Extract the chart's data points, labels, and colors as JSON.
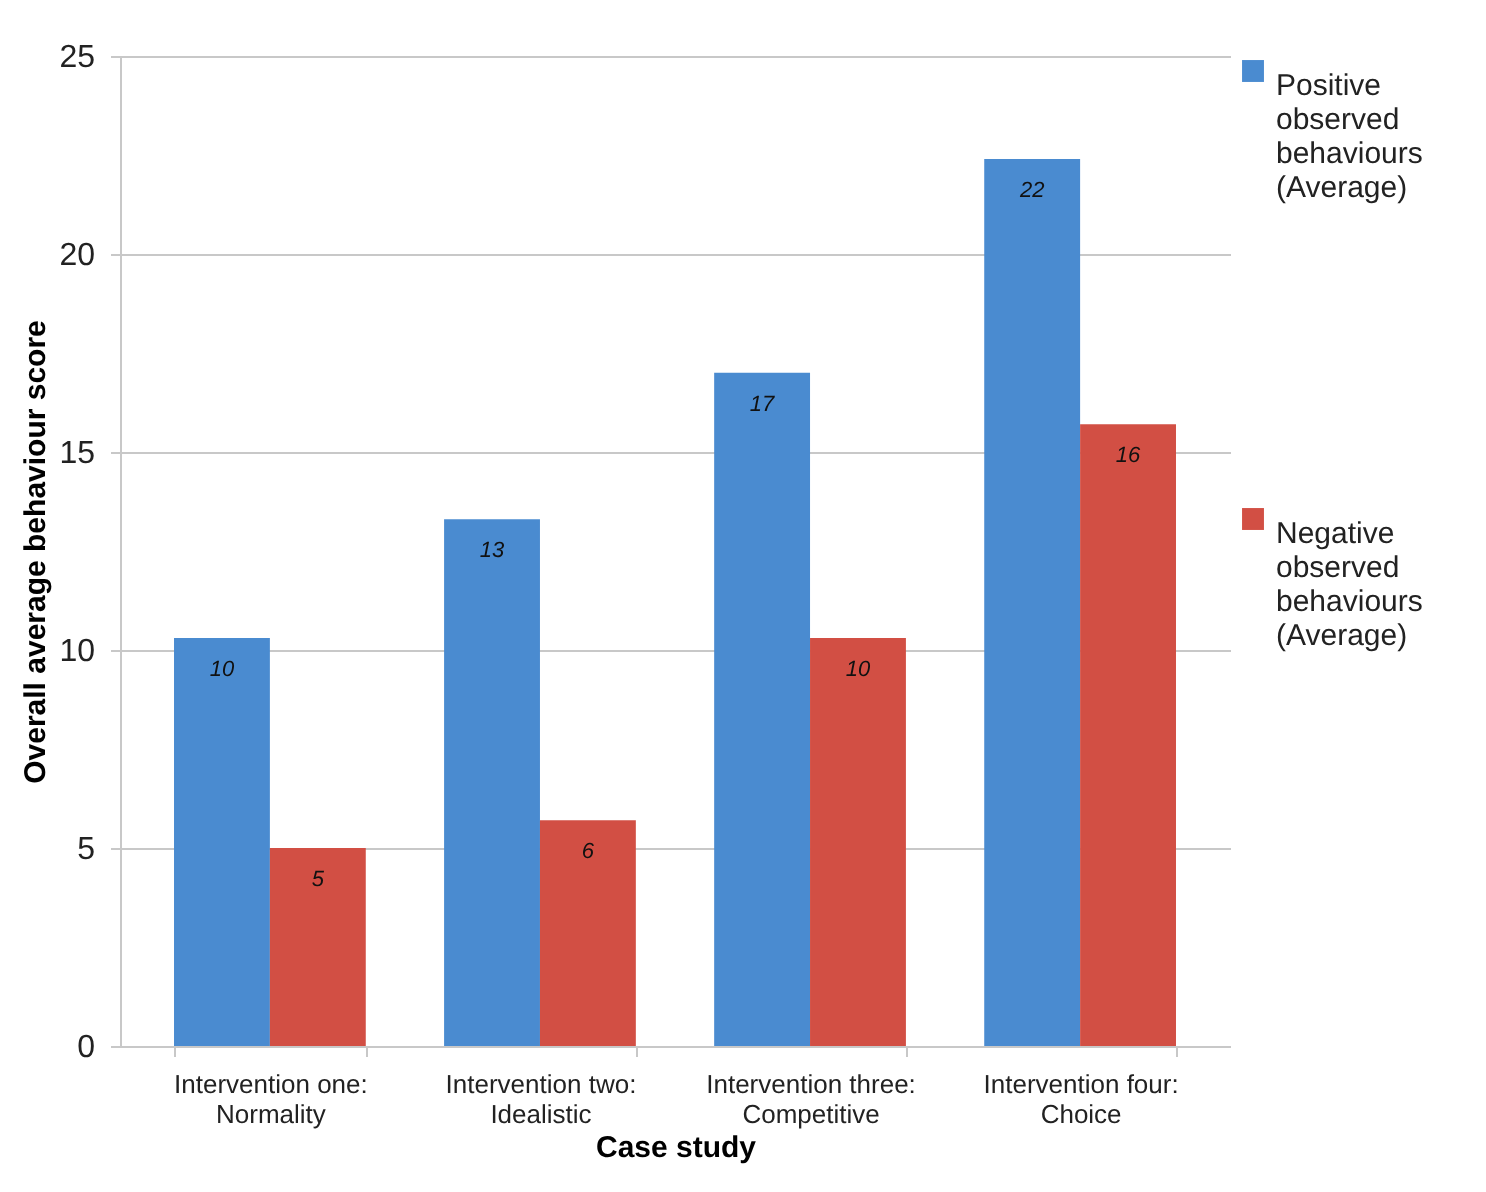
{
  "chart_data": {
    "type": "bar",
    "xlabel": "Case study",
    "ylabel": "Overall average behaviour score",
    "categories": [
      "Intervention one: Normality",
      "Intervention two: Idealistic",
      "Intervention three: Competitive",
      "Intervention four: Choice"
    ],
    "series": [
      {
        "name": "Positive observed behaviours (Average)",
        "color": "#4a8bd0",
        "values": [
          10.3,
          13.3,
          17,
          22.4
        ],
        "value_labels": [
          "10",
          "13",
          "17",
          "22"
        ]
      },
      {
        "name": "Negative observed behaviours (Average)",
        "color": "#d24f44",
        "values": [
          5,
          5.7,
          10.3,
          15.7
        ],
        "value_labels": [
          "5",
          "6",
          "10",
          "16"
        ]
      }
    ],
    "ylim": [
      0,
      25
    ],
    "yticks": [
      0,
      5,
      10,
      15,
      20,
      25
    ],
    "grid": "y",
    "legend": "right"
  }
}
